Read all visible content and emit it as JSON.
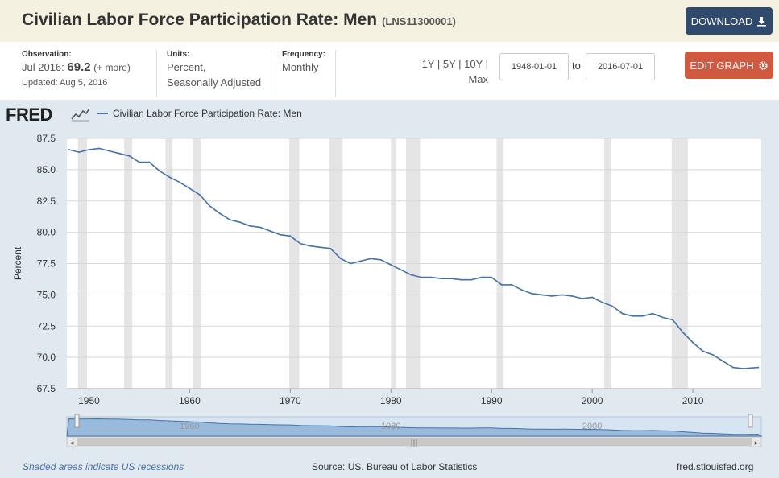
{
  "header": {
    "title": "Civilian Labor Force Participation Rate: Men",
    "series_id": "(LNS11300001)",
    "download_label": "DOWNLOAD",
    "download_icon": "download-icon"
  },
  "info": {
    "observation_label": "Observation:",
    "observation_date": "Jul 2016:",
    "observation_value": "69.2",
    "observation_more": "(+ more)",
    "updated": "Updated: Aug 5, 2016",
    "units_label": "Units:",
    "units_line1": "Percent,",
    "units_line2": "Seasonally Adjusted",
    "frequency_label": "Frequency:",
    "frequency_value": "Monthly",
    "ranges": "1Y | 5Y | 10Y | Max",
    "start_date": "1948-01-01",
    "to_label": "to",
    "end_date": "2016-07-01",
    "edit_label": "EDIT GRAPH",
    "edit_icon": "gear-icon"
  },
  "chart_data": {
    "type": "line",
    "logo": "FRED",
    "legend": "Civilian Labor Force Participation Rate: Men",
    "ylabel": "Percent",
    "ylim": [
      67.5,
      87.5
    ],
    "xlim": [
      1947.8,
      2016.8
    ],
    "yticks": [
      "87.5",
      "85.0",
      "82.5",
      "80.0",
      "77.5",
      "75.0",
      "72.5",
      "70.0",
      "67.5"
    ],
    "xticks": [
      "1950",
      "1960",
      "1970",
      "1980",
      "1990",
      "2000",
      "2010"
    ],
    "navigator_labels": [
      "1960",
      "1980",
      "2000"
    ],
    "grid": true,
    "series_color": "#4572a7",
    "recessions": [
      [
        1948.9,
        1949.8
      ],
      [
        1953.5,
        1954.3
      ],
      [
        1957.6,
        1958.3
      ],
      [
        1960.3,
        1961.1
      ],
      [
        1969.9,
        1970.9
      ],
      [
        1973.9,
        1975.2
      ],
      [
        1980.0,
        1980.5
      ],
      [
        1981.5,
        1982.9
      ],
      [
        1990.5,
        1991.2
      ],
      [
        2001.2,
        2001.9
      ],
      [
        2007.9,
        2009.5
      ]
    ],
    "x": [
      1948,
      1949,
      1950,
      1951,
      1952,
      1953,
      1954,
      1955,
      1956,
      1957,
      1958,
      1959,
      1960,
      1961,
      1962,
      1963,
      1964,
      1965,
      1966,
      1967,
      1968,
      1969,
      1970,
      1971,
      1972,
      1973,
      1974,
      1975,
      1976,
      1977,
      1978,
      1979,
      1980,
      1981,
      1982,
      1983,
      1984,
      1985,
      1986,
      1987,
      1988,
      1989,
      1990,
      1991,
      1992,
      1993,
      1994,
      1995,
      1996,
      1997,
      1998,
      1999,
      2000,
      2001,
      2002,
      2003,
      2004,
      2005,
      2006,
      2007,
      2008,
      2009,
      2010,
      2011,
      2012,
      2013,
      2014,
      2015,
      2016.5
    ],
    "values": [
      86.6,
      86.4,
      86.6,
      86.7,
      86.5,
      86.3,
      86.1,
      85.6,
      85.6,
      84.9,
      84.4,
      84.0,
      83.5,
      83.0,
      82.1,
      81.5,
      81.0,
      80.8,
      80.5,
      80.4,
      80.1,
      79.8,
      79.7,
      79.1,
      78.9,
      78.8,
      78.7,
      77.9,
      77.5,
      77.7,
      77.9,
      77.8,
      77.4,
      77.0,
      76.6,
      76.4,
      76.4,
      76.3,
      76.3,
      76.2,
      76.2,
      76.4,
      76.4,
      75.8,
      75.8,
      75.4,
      75.1,
      75.0,
      74.9,
      75.0,
      74.9,
      74.7,
      74.8,
      74.4,
      74.1,
      73.5,
      73.3,
      73.3,
      73.5,
      73.2,
      73.0,
      72.0,
      71.2,
      70.5,
      70.2,
      69.7,
      69.2,
      69.1,
      69.2
    ]
  },
  "footer": {
    "note": "Shaded areas indicate US recessions",
    "source": "Source: US. Bureau of Labor Statistics",
    "site": "fred.stlouisfed.org"
  }
}
